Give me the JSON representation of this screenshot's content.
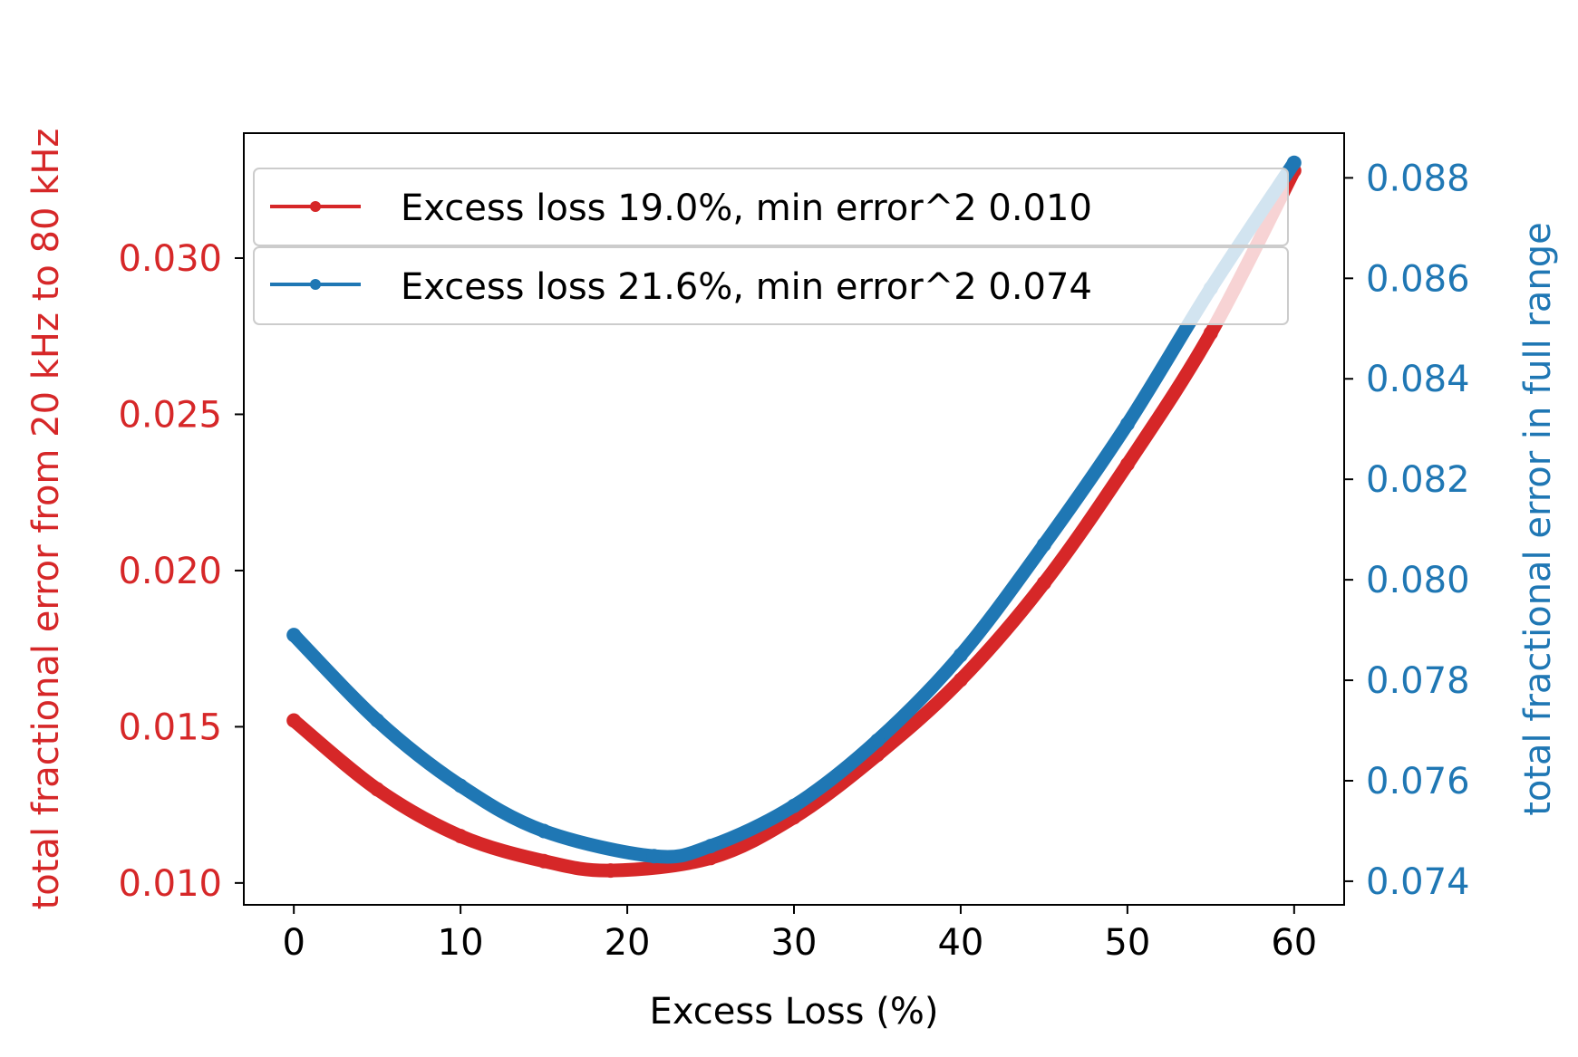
{
  "chart_data": {
    "type": "line",
    "xlabel": "Excess Loss (%)",
    "ylabel_left": "total fractional error from 20 kHz to 80 kHz",
    "ylabel_right": "total fractional error in full range",
    "xlim": [
      -3,
      63
    ],
    "ylim_left": [
      0.0093,
      0.034
    ],
    "ylim_right": [
      0.07353,
      0.08889
    ],
    "x_ticks": [
      0,
      10,
      20,
      30,
      40,
      50,
      60
    ],
    "x_tick_labels": [
      "0",
      "10",
      "20",
      "30",
      "40",
      "50",
      "60"
    ],
    "y_left_ticks": [
      0.01,
      0.015,
      0.02,
      0.025,
      0.03
    ],
    "y_left_tick_labels": [
      "0.010",
      "0.015",
      "0.020",
      "0.025",
      "0.030"
    ],
    "y_right_ticks": [
      0.074,
      0.076,
      0.078,
      0.08,
      0.082,
      0.084,
      0.086,
      0.088
    ],
    "y_right_tick_labels": [
      "0.074",
      "0.076",
      "0.078",
      "0.080",
      "0.082",
      "0.084",
      "0.086",
      "0.088"
    ],
    "grid": false,
    "legend_position": "top-left",
    "series": [
      {
        "name": "Excess loss 19.0%, min error^2 0.010",
        "axis": "left",
        "color": "#d62728",
        "x": [
          0,
          5,
          10,
          15,
          19,
          25,
          30,
          35,
          40,
          45,
          50,
          55,
          60
        ],
        "values": [
          0.0152,
          0.013,
          0.0115,
          0.0107,
          0.0104,
          0.0108,
          0.0121,
          0.0141,
          0.0165,
          0.0196,
          0.0234,
          0.0276,
          0.0328
        ]
      },
      {
        "name": "Excess loss 21.6%, min error^2 0.074",
        "axis": "right",
        "color": "#1f77b4",
        "x": [
          0,
          5,
          10,
          15,
          21.6,
          25,
          30,
          35,
          40,
          45,
          50,
          55,
          60
        ],
        "values": [
          0.0789,
          0.0772,
          0.0759,
          0.075,
          0.0745,
          0.0747,
          0.0755,
          0.0768,
          0.0785,
          0.0807,
          0.0831,
          0.0858,
          0.0883
        ]
      }
    ]
  }
}
